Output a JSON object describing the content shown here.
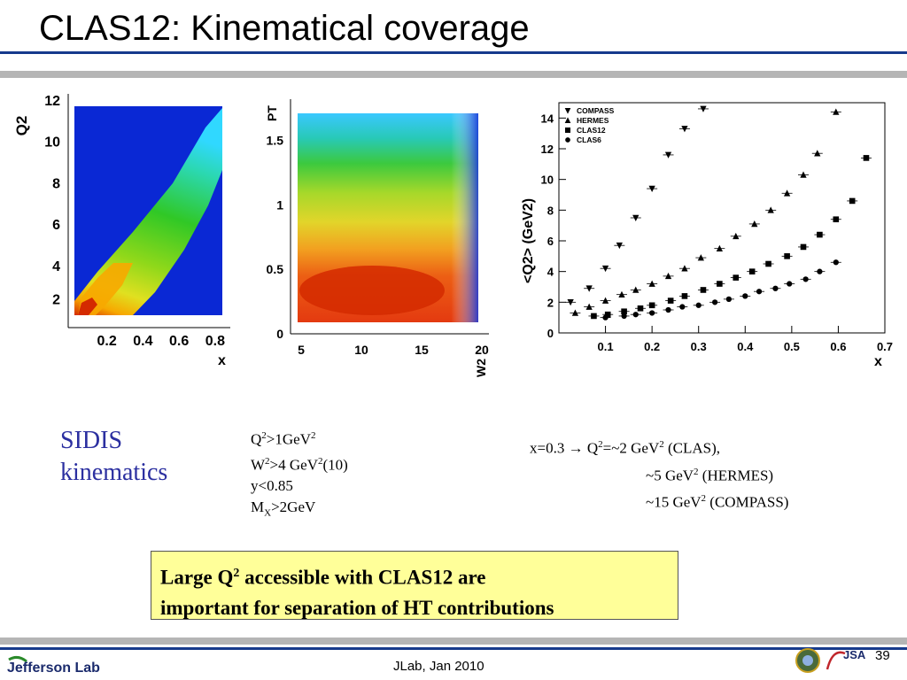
{
  "slide": {
    "title": "CLAS12: Kinematical coverage",
    "sidis_line1": "SIDIS",
    "sidis_line2": "kinematics",
    "cuts": {
      "c1_a": "Q",
      "c1_sup": "2",
      "c1_b": ">1GeV",
      "c1_sup2": "2",
      "c2_a": "W",
      "c2_sup": "2",
      "c2_b": ">4 GeV",
      "c2_sup2": "2",
      "c2_c": "(10)",
      "c3": "y<0.85",
      "c4_a": "M",
      "c4_sub": "X",
      "c4_b": ">2GeV"
    },
    "q2note": {
      "l1_a": "x=0.3 → Q",
      "l1_sup": "2",
      "l1_b": "=~2 GeV",
      "l1_sup2": "2",
      "l1_c": " (CLAS),",
      "l2_a": "~5 GeV",
      "l2_sup": "2",
      "l2_b": " (HERMES)",
      "l3_a": "~15 GeV",
      "l3_sup": "2",
      "l3_b": " (COMPASS)"
    },
    "box": {
      "l1_a": "Large Q",
      "l1_sup": "2",
      "l1_b": " accessible with CLAS12 are",
      "l2": "important for separation of HT contributions"
    },
    "footer": {
      "lab_logo_text": "Jefferson Lab",
      "center": "JLab, Jan 2010",
      "page": "39",
      "jsa_text": "JSA"
    }
  },
  "colors": {
    "rule_blue": "#163a8c",
    "rule_gray": "#b5b5b5",
    "sidis": "#2b2fa0",
    "box_bg": "#ffff99",
    "heat_blue": "#0a28d4",
    "heat_red": "#d42a00"
  },
  "chart_data": [
    {
      "type": "heatmap",
      "xlabel": "x",
      "ylabel": "Q2",
      "x_ticks": [
        "0.2",
        "0.4",
        "0.6",
        "0.8"
      ],
      "y_ticks": [
        "2",
        "4",
        "6",
        "8",
        "10",
        "12"
      ],
      "xlim": [
        0.02,
        0.84
      ],
      "ylim": [
        1,
        12.3
      ]
    },
    {
      "type": "heatmap",
      "xlabel": "W2",
      "ylabel": "PT",
      "x_ticks": [
        "5",
        "10",
        "15",
        "20"
      ],
      "y_ticks": [
        "0",
        "0.5",
        "1",
        "1.5"
      ],
      "xlim": [
        4,
        20
      ],
      "ylim": [
        0,
        1.75
      ]
    },
    {
      "type": "scatter",
      "xlabel": "x",
      "ylabel": "<Q2> (GeV2)",
      "xlim": [
        0,
        0.7
      ],
      "ylim": [
        0,
        15
      ],
      "x_ticks": [
        "0.1",
        "0.2",
        "0.3",
        "0.4",
        "0.5",
        "0.6",
        "0.7"
      ],
      "y_ticks": [
        "0",
        "2",
        "4",
        "6",
        "8",
        "10",
        "12",
        "14"
      ],
      "legend": "top-left",
      "series": [
        {
          "name": "COMPASS",
          "marker": "triangle-down",
          "x": [
            0.025,
            0.065,
            0.1,
            0.13,
            0.165,
            0.2,
            0.235,
            0.27,
            0.31,
            0.36
          ],
          "y": [
            2.0,
            2.9,
            4.2,
            5.7,
            7.5,
            9.4,
            11.6,
            13.3,
            14.6,
            15.7
          ]
        },
        {
          "name": "HERMES",
          "marker": "triangle-up",
          "x": [
            0.035,
            0.065,
            0.1,
            0.135,
            0.165,
            0.2,
            0.235,
            0.27,
            0.305,
            0.345,
            0.38,
            0.42,
            0.455,
            0.49,
            0.525,
            0.555,
            0.595
          ],
          "y": [
            1.3,
            1.7,
            2.1,
            2.5,
            2.8,
            3.2,
            3.7,
            4.2,
            4.9,
            5.5,
            6.3,
            7.1,
            8.0,
            9.1,
            10.3,
            11.7,
            14.4
          ]
        },
        {
          "name": "CLAS12",
          "marker": "square",
          "x": [
            0.075,
            0.105,
            0.14,
            0.175,
            0.2,
            0.24,
            0.27,
            0.31,
            0.345,
            0.38,
            0.415,
            0.45,
            0.49,
            0.525,
            0.56,
            0.595,
            0.63,
            0.66
          ],
          "y": [
            1.1,
            1.2,
            1.4,
            1.6,
            1.8,
            2.1,
            2.4,
            2.8,
            3.2,
            3.6,
            4.0,
            4.5,
            5.0,
            5.6,
            6.4,
            7.4,
            8.6,
            11.4
          ]
        },
        {
          "name": "CLAS6",
          "marker": "circle",
          "x": [
            0.1,
            0.14,
            0.165,
            0.2,
            0.235,
            0.265,
            0.3,
            0.335,
            0.365,
            0.4,
            0.43,
            0.465,
            0.495,
            0.53,
            0.56,
            0.595
          ],
          "y": [
            1.0,
            1.1,
            1.2,
            1.3,
            1.5,
            1.7,
            1.8,
            2.0,
            2.2,
            2.4,
            2.7,
            2.9,
            3.2,
            3.5,
            4.0,
            4.6
          ]
        }
      ]
    }
  ]
}
